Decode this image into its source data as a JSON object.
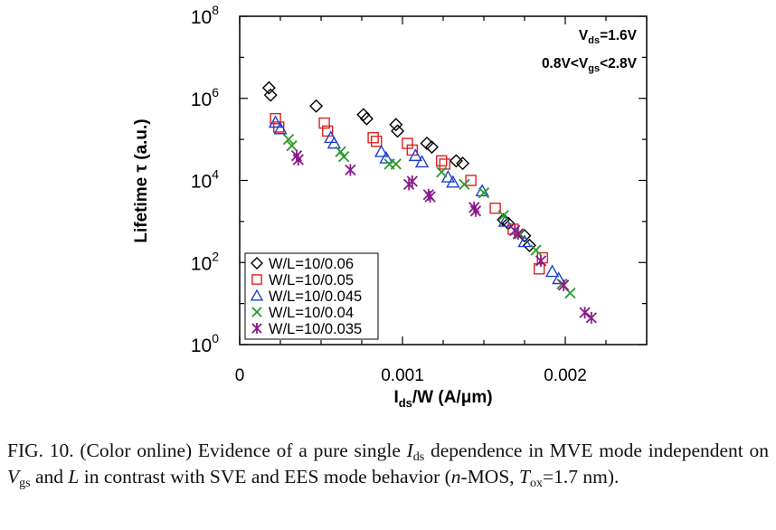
{
  "chart_data": {
    "type": "scatter",
    "title": "",
    "xlabel": {
      "base": "I",
      "sub": "ds",
      "rest": "/W (A/μm)"
    },
    "ylabel": "Lifetime τ (a.u.)",
    "xlim": [
      0,
      0.0025
    ],
    "ylim_log10": [
      0,
      8
    ],
    "y_scale": "log",
    "grid": false,
    "legend_position": "bottom-left",
    "x_ticks": [
      {
        "value": 0,
        "label": "0"
      },
      {
        "value": 0.001,
        "label": "0.001"
      },
      {
        "value": 0.002,
        "label": "0.002"
      }
    ],
    "y_ticks": [
      {
        "exp": 0,
        "base": "10",
        "sup": "0"
      },
      {
        "exp": 2,
        "base": "10",
        "sup": "2"
      },
      {
        "exp": 4,
        "base": "10",
        "sup": "4"
      },
      {
        "exp": 6,
        "base": "10",
        "sup": "6"
      },
      {
        "exp": 8,
        "base": "10",
        "sup": "8"
      }
    ],
    "annotations": [
      {
        "id": "vds",
        "parts": [
          {
            "t": "V"
          },
          {
            "t": "ds",
            "sub": true
          },
          {
            "t": "=1.6V"
          }
        ]
      },
      {
        "id": "vgs",
        "parts": [
          {
            "t": "0.8V<V"
          },
          {
            "t": "gs",
            "sub": true
          },
          {
            "t": "<2.8V"
          }
        ]
      }
    ],
    "series": [
      {
        "name": "W/L=10/0.06",
        "marker": "diamond",
        "color": "#000000",
        "points": [
          [
            0.00018,
            1800000.0
          ],
          [
            0.00019,
            1200000.0
          ],
          [
            0.00047,
            650000.0
          ],
          [
            0.00076,
            400000.0
          ],
          [
            0.00078,
            320000.0
          ],
          [
            0.00096,
            230000.0
          ],
          [
            0.00097,
            160000.0
          ],
          [
            0.00115,
            80000.0
          ],
          [
            0.00118,
            65000.0
          ],
          [
            0.00133,
            30000.0
          ],
          [
            0.00137,
            26000.0
          ],
          [
            0.00162,
            1100.0
          ],
          [
            0.00165,
            900.0
          ],
          [
            0.00175,
            450.0
          ],
          [
            0.00178,
            260.0
          ]
        ]
      },
      {
        "name": "W/L=10/0.05",
        "marker": "square",
        "color": "#e02020",
        "points": [
          [
            0.00022,
            320000.0
          ],
          [
            0.00024,
            200000.0
          ],
          [
            0.00052,
            250000.0
          ],
          [
            0.00054,
            160000.0
          ],
          [
            0.00082,
            110000.0
          ],
          [
            0.00084,
            90000.0
          ],
          [
            0.00103,
            80000.0
          ],
          [
            0.00106,
            55000.0
          ],
          [
            0.00124,
            30000.0
          ],
          [
            0.00126,
            25000.0
          ],
          [
            0.00142,
            10000.0
          ],
          [
            0.00157,
            2100.0
          ],
          [
            0.00168,
            650.0
          ],
          [
            0.00186,
            130.0
          ],
          [
            0.00184,
            70.0
          ]
        ]
      },
      {
        "name": "W/L=10/0.045",
        "marker": "triangle",
        "color": "#1f3fd0",
        "points": [
          [
            0.00022,
            260000.0
          ],
          [
            0.00025,
            180000.0
          ],
          [
            0.00056,
            110000.0
          ],
          [
            0.00058,
            80000.0
          ],
          [
            0.00087,
            50000.0
          ],
          [
            0.0009,
            35000.0
          ],
          [
            0.00108,
            40000.0
          ],
          [
            0.00112,
            28000.0
          ],
          [
            0.00128,
            12000.0
          ],
          [
            0.00131,
            9000.0
          ],
          [
            0.00149,
            5500.0
          ],
          [
            0.00163,
            1000.0
          ],
          [
            0.00175,
            320.0
          ],
          [
            0.00192,
            60.0
          ],
          [
            0.00196,
            40.0
          ]
        ]
      },
      {
        "name": "W/L=10/0.04",
        "marker": "x",
        "color": "#2a9a2a",
        "points": [
          [
            0.0003,
            100000.0
          ],
          [
            0.00032,
            70000.0
          ],
          [
            0.00062,
            50000.0
          ],
          [
            0.00064,
            38000.0
          ],
          [
            0.00092,
            25000.0
          ],
          [
            0.00096,
            25000.0
          ],
          [
            0.00124,
            16000.0
          ],
          [
            0.00138,
            8000.0
          ],
          [
            0.0015,
            5000.0
          ],
          [
            0.00162,
            1400.0
          ],
          [
            0.00172,
            500.0
          ],
          [
            0.00182,
            200.0
          ],
          [
            0.00198,
            30.0
          ],
          [
            0.00203,
            18.0
          ]
        ]
      },
      {
        "name": "W/L=10/0.035",
        "marker": "asterisk",
        "color": "#8a1a8a",
        "points": [
          [
            0.00035,
            40000.0
          ],
          [
            0.00036,
            32000.0
          ],
          [
            0.00068,
            18000.0
          ],
          [
            0.00104,
            8000.0
          ],
          [
            0.00106,
            9500.0
          ],
          [
            0.00116,
            4500.0
          ],
          [
            0.00117,
            4000.0
          ],
          [
            0.00144,
            2200.0
          ],
          [
            0.00145,
            1800.0
          ],
          [
            0.00169,
            600.0
          ],
          [
            0.00171,
            500.0
          ],
          [
            0.00185,
            110.0
          ],
          [
            0.00199,
            28.0
          ],
          [
            0.00212,
            6.0
          ],
          [
            0.00216,
            4.5
          ]
        ]
      }
    ]
  },
  "caption": {
    "fig": "FIG. 10.",
    "text_1": "(Color online) Evidence of a pure single",
    "ids_base": "I",
    "ids_sub": "ds",
    "text_2": "dependence in MVE mode independent on",
    "vgs_base": "V",
    "vgs_sub": "gs",
    "text_3": "and",
    "L": "L",
    "text_4": "in contrast with SVE and EES mode behavior (",
    "nmos_n": "n",
    "nmos_rest": "-MOS,",
    "tox_base": "T",
    "tox_sub": "ox",
    "text_5": "=1.7 nm)."
  }
}
